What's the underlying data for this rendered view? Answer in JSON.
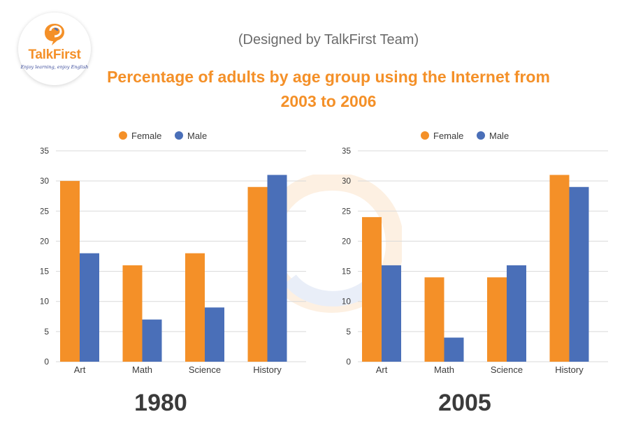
{
  "logo": {
    "name": "TalkFirst",
    "tagline": "Enjoy learning, enjoy English"
  },
  "header": {
    "credit": "(Designed by TalkFirst Team)",
    "title_line1": "Percentage of adults by age group using the Internet from",
    "title_line2": "2003 to 2006"
  },
  "colors": {
    "female": "#f49028",
    "male": "#4a6fb8",
    "grid": "#d9d9d9",
    "text": "#3b3b3b"
  },
  "chart_data": [
    {
      "type": "bar",
      "title": "1980",
      "categories": [
        "Art",
        "Math",
        "Science",
        "History"
      ],
      "series": [
        {
          "name": "Female",
          "values": [
            30,
            16,
            18,
            29
          ]
        },
        {
          "name": "Male",
          "values": [
            18,
            7,
            9,
            31
          ]
        }
      ],
      "yticks": [
        0,
        5,
        10,
        15,
        20,
        25,
        30,
        35
      ],
      "ylim": [
        0,
        35
      ],
      "grid": true,
      "legend": "top-center"
    },
    {
      "type": "bar",
      "title": "2005",
      "categories": [
        "Art",
        "Math",
        "Science",
        "History"
      ],
      "series": [
        {
          "name": "Female",
          "values": [
            24,
            14,
            14,
            31
          ]
        },
        {
          "name": "Male",
          "values": [
            16,
            4,
            16,
            29
          ]
        }
      ],
      "yticks": [
        0,
        5,
        10,
        15,
        20,
        25,
        30,
        35
      ],
      "ylim": [
        0,
        35
      ],
      "grid": true,
      "legend": "top-center"
    }
  ]
}
